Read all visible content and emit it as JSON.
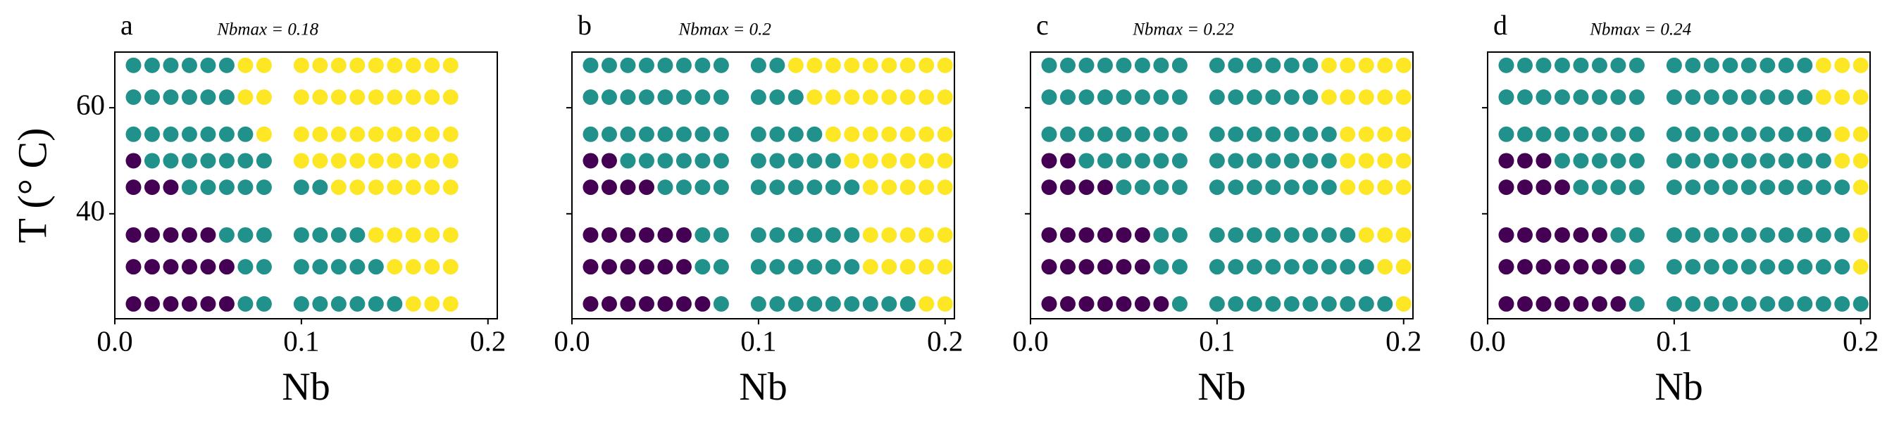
{
  "chart_data": [
    {
      "type": "scatter",
      "label": "a",
      "title": "Nbmax = 0.18",
      "xlabel": "Nb",
      "ylabel": "T (° C)",
      "xlim": [
        0,
        0.205
      ],
      "ylim": [
        20.2,
        70.5
      ],
      "xticks": [
        {
          "value": 0,
          "label": "0.0"
        },
        {
          "value": 0.1,
          "label": "0.1"
        },
        {
          "value": 0.2,
          "label": "0.2"
        }
      ],
      "yticks": [
        40,
        60
      ],
      "palette": [
        "#440154",
        "#21918c",
        "#fde725"
      ],
      "x": [
        0.01,
        0.02,
        0.03,
        0.04,
        0.05,
        0.06,
        0.07,
        0.08,
        0.1,
        0.11,
        0.12,
        0.13,
        0.14,
        0.15,
        0.16,
        0.17,
        0.18
      ],
      "rows": [
        {
          "T": 68,
          "classes": [
            1,
            1,
            1,
            1,
            1,
            1,
            2,
            2,
            2,
            2,
            2,
            2,
            2,
            2,
            2,
            2,
            2
          ]
        },
        {
          "T": 62,
          "classes": [
            1,
            1,
            1,
            1,
            1,
            1,
            2,
            2,
            2,
            2,
            2,
            2,
            2,
            2,
            2,
            2,
            2
          ]
        },
        {
          "T": 55,
          "classes": [
            1,
            1,
            1,
            1,
            1,
            1,
            1,
            2,
            2,
            2,
            2,
            2,
            2,
            2,
            2,
            2,
            2
          ]
        },
        {
          "T": 50,
          "classes": [
            0,
            1,
            1,
            1,
            1,
            1,
            1,
            1,
            2,
            2,
            2,
            2,
            2,
            2,
            2,
            2,
            2
          ]
        },
        {
          "T": 45,
          "classes": [
            0,
            0,
            0,
            1,
            1,
            1,
            1,
            1,
            1,
            1,
            2,
            2,
            2,
            2,
            2,
            2,
            2
          ]
        },
        {
          "T": 36,
          "classes": [
            0,
            0,
            0,
            0,
            0,
            1,
            1,
            1,
            1,
            1,
            1,
            1,
            2,
            2,
            2,
            2,
            2
          ]
        },
        {
          "T": 30,
          "classes": [
            0,
            0,
            0,
            0,
            0,
            0,
            1,
            1,
            1,
            1,
            1,
            1,
            1,
            2,
            2,
            2,
            2
          ]
        },
        {
          "T": 23,
          "classes": [
            0,
            0,
            0,
            0,
            0,
            0,
            1,
            1,
            1,
            1,
            1,
            1,
            1,
            1,
            2,
            2,
            2
          ]
        }
      ]
    },
    {
      "type": "scatter",
      "label": "b",
      "title": "Nbmax = 0.2",
      "xlabel": "Nb",
      "xlim": [
        0,
        0.205
      ],
      "ylim": [
        20.2,
        70.5
      ],
      "xticks": [
        {
          "value": 0,
          "label": "0.0"
        },
        {
          "value": 0.1,
          "label": "0.1"
        },
        {
          "value": 0.2,
          "label": "0.2"
        }
      ],
      "yticks": [
        40,
        60
      ],
      "palette": [
        "#440154",
        "#21918c",
        "#fde725"
      ],
      "x": [
        0.01,
        0.02,
        0.03,
        0.04,
        0.05,
        0.06,
        0.07,
        0.08,
        0.1,
        0.11,
        0.12,
        0.13,
        0.14,
        0.15,
        0.16,
        0.17,
        0.18,
        0.19,
        0.2
      ],
      "rows": [
        {
          "T": 68,
          "classes": [
            1,
            1,
            1,
            1,
            1,
            1,
            1,
            1,
            1,
            1,
            2,
            2,
            2,
            2,
            2,
            2,
            2,
            2,
            2
          ]
        },
        {
          "T": 62,
          "classes": [
            1,
            1,
            1,
            1,
            1,
            1,
            1,
            1,
            1,
            1,
            1,
            2,
            2,
            2,
            2,
            2,
            2,
            2,
            2
          ]
        },
        {
          "T": 55,
          "classes": [
            1,
            1,
            1,
            1,
            1,
            1,
            1,
            1,
            1,
            1,
            1,
            1,
            2,
            2,
            2,
            2,
            2,
            2,
            2
          ]
        },
        {
          "T": 50,
          "classes": [
            0,
            0,
            1,
            1,
            1,
            1,
            1,
            1,
            1,
            1,
            1,
            1,
            1,
            2,
            2,
            2,
            2,
            2,
            2
          ]
        },
        {
          "T": 45,
          "classes": [
            0,
            0,
            0,
            0,
            1,
            1,
            1,
            1,
            1,
            1,
            1,
            1,
            1,
            1,
            2,
            2,
            2,
            2,
            2
          ]
        },
        {
          "T": 36,
          "classes": [
            0,
            0,
            0,
            0,
            0,
            0,
            1,
            1,
            1,
            1,
            1,
            1,
            1,
            1,
            2,
            2,
            2,
            2,
            2
          ]
        },
        {
          "T": 30,
          "classes": [
            0,
            0,
            0,
            0,
            0,
            0,
            1,
            1,
            1,
            1,
            1,
            1,
            1,
            1,
            2,
            2,
            2,
            2,
            2
          ]
        },
        {
          "T": 23,
          "classes": [
            0,
            0,
            0,
            0,
            0,
            0,
            0,
            1,
            1,
            1,
            1,
            1,
            1,
            1,
            1,
            1,
            1,
            2,
            2
          ]
        }
      ]
    },
    {
      "type": "scatter",
      "label": "c",
      "title": "Nbmax = 0.22",
      "xlabel": "Nb",
      "xlim": [
        0,
        0.205
      ],
      "ylim": [
        20.2,
        70.5
      ],
      "xticks": [
        {
          "value": 0,
          "label": "0.0"
        },
        {
          "value": 0.1,
          "label": "0.1"
        },
        {
          "value": 0.2,
          "label": "0.2"
        }
      ],
      "yticks": [
        40,
        60
      ],
      "palette": [
        "#440154",
        "#21918c",
        "#fde725"
      ],
      "x": [
        0.01,
        0.02,
        0.03,
        0.04,
        0.05,
        0.06,
        0.07,
        0.08,
        0.1,
        0.11,
        0.12,
        0.13,
        0.14,
        0.15,
        0.16,
        0.17,
        0.18,
        0.19,
        0.2
      ],
      "rows": [
        {
          "T": 68,
          "classes": [
            1,
            1,
            1,
            1,
            1,
            1,
            1,
            1,
            1,
            1,
            1,
            1,
            1,
            1,
            2,
            2,
            2,
            2,
            2
          ]
        },
        {
          "T": 62,
          "classes": [
            1,
            1,
            1,
            1,
            1,
            1,
            1,
            1,
            1,
            1,
            1,
            1,
            1,
            1,
            2,
            2,
            2,
            2,
            2
          ]
        },
        {
          "T": 55,
          "classes": [
            1,
            1,
            1,
            1,
            1,
            1,
            1,
            1,
            1,
            1,
            1,
            1,
            1,
            1,
            1,
            2,
            2,
            2,
            2
          ]
        },
        {
          "T": 50,
          "classes": [
            0,
            0,
            1,
            1,
            1,
            1,
            1,
            1,
            1,
            1,
            1,
            1,
            1,
            1,
            1,
            2,
            2,
            2,
            2
          ]
        },
        {
          "T": 45,
          "classes": [
            0,
            0,
            0,
            0,
            1,
            1,
            1,
            1,
            1,
            1,
            1,
            1,
            1,
            1,
            1,
            2,
            2,
            2,
            2
          ]
        },
        {
          "T": 36,
          "classes": [
            0,
            0,
            0,
            0,
            0,
            0,
            1,
            1,
            1,
            1,
            1,
            1,
            1,
            1,
            1,
            1,
            2,
            2,
            2
          ]
        },
        {
          "T": 30,
          "classes": [
            0,
            0,
            0,
            0,
            0,
            0,
            1,
            1,
            1,
            1,
            1,
            1,
            1,
            1,
            1,
            1,
            1,
            2,
            2
          ]
        },
        {
          "T": 23,
          "classes": [
            0,
            0,
            0,
            0,
            0,
            0,
            0,
            1,
            1,
            1,
            1,
            1,
            1,
            1,
            1,
            1,
            1,
            1,
            2
          ]
        }
      ]
    },
    {
      "type": "scatter",
      "label": "d",
      "title": "Nbmax = 0.24",
      "xlabel": "Nb",
      "xlim": [
        0,
        0.205
      ],
      "ylim": [
        20.2,
        70.5
      ],
      "xticks": [
        {
          "value": 0,
          "label": "0.0"
        },
        {
          "value": 0.1,
          "label": "0.1"
        },
        {
          "value": 0.2,
          "label": "0.2"
        }
      ],
      "yticks": [
        40,
        60
      ],
      "palette": [
        "#440154",
        "#21918c",
        "#fde725"
      ],
      "x": [
        0.01,
        0.02,
        0.03,
        0.04,
        0.05,
        0.06,
        0.07,
        0.08,
        0.1,
        0.11,
        0.12,
        0.13,
        0.14,
        0.15,
        0.16,
        0.17,
        0.18,
        0.19,
        0.2
      ],
      "rows": [
        {
          "T": 68,
          "classes": [
            1,
            1,
            1,
            1,
            1,
            1,
            1,
            1,
            1,
            1,
            1,
            1,
            1,
            1,
            1,
            1,
            2,
            2,
            2
          ]
        },
        {
          "T": 62,
          "classes": [
            1,
            1,
            1,
            1,
            1,
            1,
            1,
            1,
            1,
            1,
            1,
            1,
            1,
            1,
            1,
            1,
            2,
            2,
            2
          ]
        },
        {
          "T": 55,
          "classes": [
            1,
            1,
            1,
            1,
            1,
            1,
            1,
            1,
            1,
            1,
            1,
            1,
            1,
            1,
            1,
            1,
            1,
            2,
            2
          ]
        },
        {
          "T": 50,
          "classes": [
            0,
            0,
            0,
            1,
            1,
            1,
            1,
            1,
            1,
            1,
            1,
            1,
            1,
            1,
            1,
            1,
            1,
            2,
            2
          ]
        },
        {
          "T": 45,
          "classes": [
            0,
            0,
            0,
            0,
            1,
            1,
            1,
            1,
            1,
            1,
            1,
            1,
            1,
            1,
            1,
            1,
            1,
            1,
            2
          ]
        },
        {
          "T": 36,
          "classes": [
            0,
            0,
            0,
            0,
            0,
            0,
            1,
            1,
            1,
            1,
            1,
            1,
            1,
            1,
            1,
            1,
            1,
            1,
            2
          ]
        },
        {
          "T": 30,
          "classes": [
            0,
            0,
            0,
            0,
            0,
            0,
            0,
            1,
            1,
            1,
            1,
            1,
            1,
            1,
            1,
            1,
            1,
            1,
            2
          ]
        },
        {
          "T": 23,
          "classes": [
            0,
            0,
            0,
            0,
            0,
            0,
            0,
            1,
            1,
            1,
            1,
            1,
            1,
            1,
            1,
            1,
            1,
            1,
            1
          ]
        }
      ]
    }
  ]
}
